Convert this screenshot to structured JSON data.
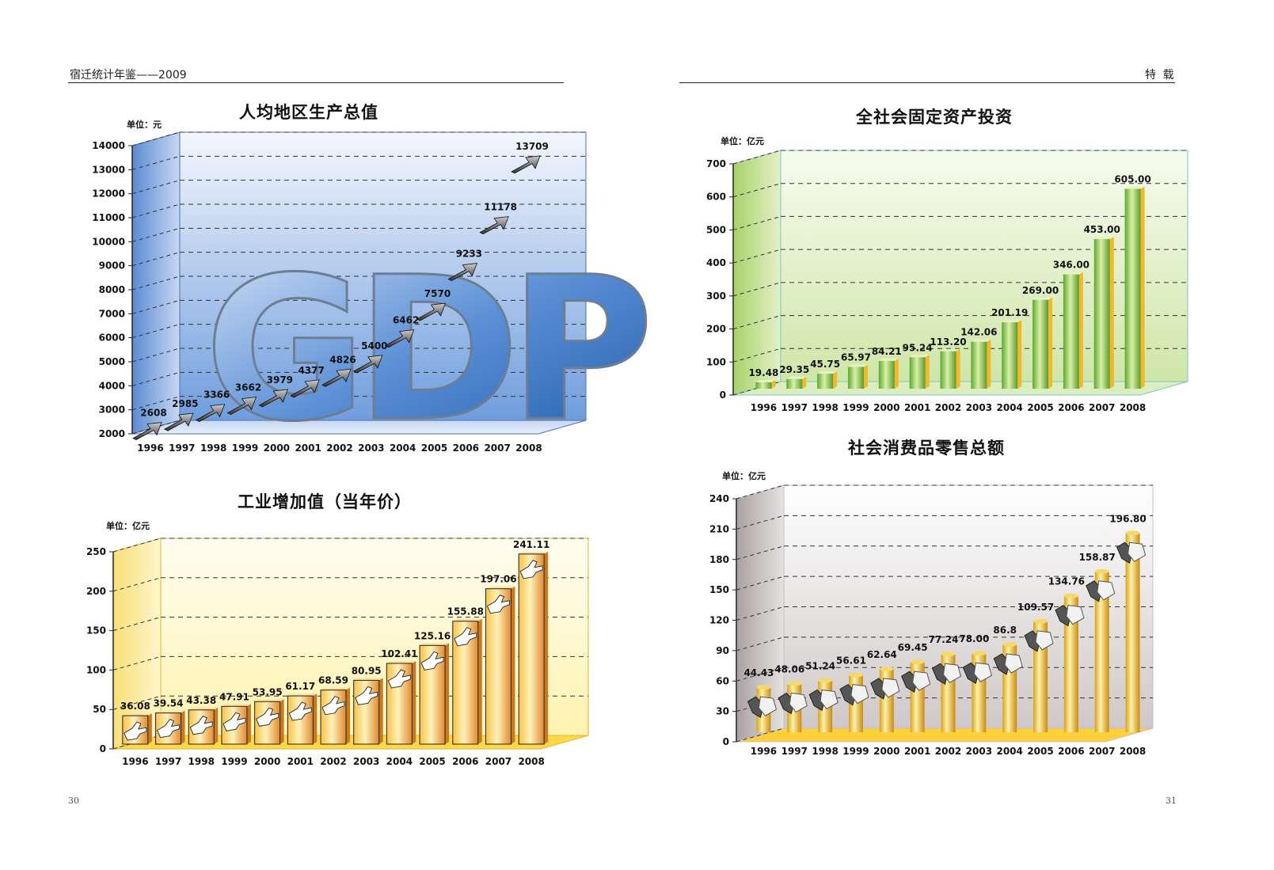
{
  "header": {
    "left": "宿迁统计年鉴——2009",
    "right": "特  载"
  },
  "pages": {
    "left": "30",
    "right": "31"
  },
  "colors": {
    "blue": "#5b8fd6",
    "green": "#8cc63f",
    "gold": "#e8b020",
    "yellow": "#f4d35e"
  },
  "chart_data": [
    {
      "id": "gdp",
      "type": "line",
      "title": "人均地区生产总值",
      "unit": "单位：元",
      "decoration_text": "GDP",
      "categories": [
        "1996",
        "1997",
        "1998",
        "1999",
        "2000",
        "2001",
        "2002",
        "2003",
        "2004",
        "2005",
        "2006",
        "2007",
        "2008"
      ],
      "values": [
        2608,
        2985,
        3366,
        3662,
        3979,
        4377,
        4826,
        5400,
        6462,
        7570,
        9233,
        11178,
        13709
      ],
      "labels": [
        "2608",
        "2985",
        "3366",
        "3662",
        "3979",
        "4377",
        "4826",
        "5400",
        "6462",
        "7570",
        "9233",
        "11178",
        "13709"
      ],
      "yticks": [
        "2000",
        "3000",
        "4000",
        "5000",
        "6000",
        "7000",
        "8000",
        "9000",
        "10000",
        "11000",
        "12000",
        "13000",
        "14000"
      ],
      "ylim": [
        2000,
        14000
      ]
    },
    {
      "id": "industry",
      "type": "bar",
      "title": "工业增加值（当年价）",
      "unit": "单位：亿元",
      "categories": [
        "1996",
        "1997",
        "1998",
        "1999",
        "2000",
        "2001",
        "2002",
        "2003",
        "2004",
        "2005",
        "2006",
        "2007",
        "2008"
      ],
      "values": [
        36.08,
        39.54,
        43.38,
        47.91,
        53.95,
        61.17,
        68.59,
        80.95,
        102.41,
        125.16,
        155.88,
        197.06,
        241.11
      ],
      "labels": [
        "36.08",
        "39.54",
        "43.38",
        "47.91",
        "53.95",
        "61.17",
        "68.59",
        "80.95",
        "102.41",
        "125.16",
        "155.88",
        "197.06",
        "241.11"
      ],
      "yticks": [
        "0",
        "50",
        "100",
        "150",
        "200",
        "250"
      ],
      "ylim": [
        0,
        250
      ]
    },
    {
      "id": "investment",
      "type": "bar",
      "title": "全社会固定资产投资",
      "unit": "单位：亿元",
      "categories": [
        "1996",
        "1997",
        "1998",
        "1999",
        "2000",
        "2001",
        "2002",
        "2003",
        "2004",
        "2005",
        "2006",
        "2007",
        "2008"
      ],
      "values": [
        19.48,
        29.35,
        45.75,
        65.97,
        84.21,
        95.24,
        113.2,
        142.06,
        201.19,
        269.0,
        346.0,
        453.0,
        605.0
      ],
      "labels": [
        "19.48",
        "29.35",
        "45.75",
        "65.97",
        "84.21",
        "95.24",
        "113.20",
        "142.06",
        "201.19",
        "269.00",
        "346.00",
        "453.00",
        "605.00"
      ],
      "yticks": [
        "0",
        "100",
        "200",
        "300",
        "400",
        "500",
        "600",
        "700"
      ],
      "ylim": [
        0,
        700
      ]
    },
    {
      "id": "retail",
      "type": "bar",
      "title": "社会消费品零售总额",
      "unit": "单位：亿元",
      "categories": [
        "1996",
        "1997",
        "1998",
        "1999",
        "2000",
        "2001",
        "2002",
        "2003",
        "2004",
        "2005",
        "2006",
        "2007",
        "2008"
      ],
      "values": [
        44.43,
        48.06,
        51.24,
        56.61,
        62.64,
        69.45,
        77.24,
        78.0,
        86.8,
        109.57,
        134.76,
        158.87,
        196.8
      ],
      "labels": [
        "44.43",
        "48.06",
        "51.24",
        "56.61",
        "62.64",
        "69.45",
        "77.24",
        "78.00",
        "86.8",
        "109.57",
        "134.76",
        "158.87",
        "196.80"
      ],
      "yticks": [
        "0",
        "30",
        "60",
        "90",
        "120",
        "150",
        "180",
        "210",
        "240"
      ],
      "ylim": [
        0,
        240
      ]
    }
  ]
}
